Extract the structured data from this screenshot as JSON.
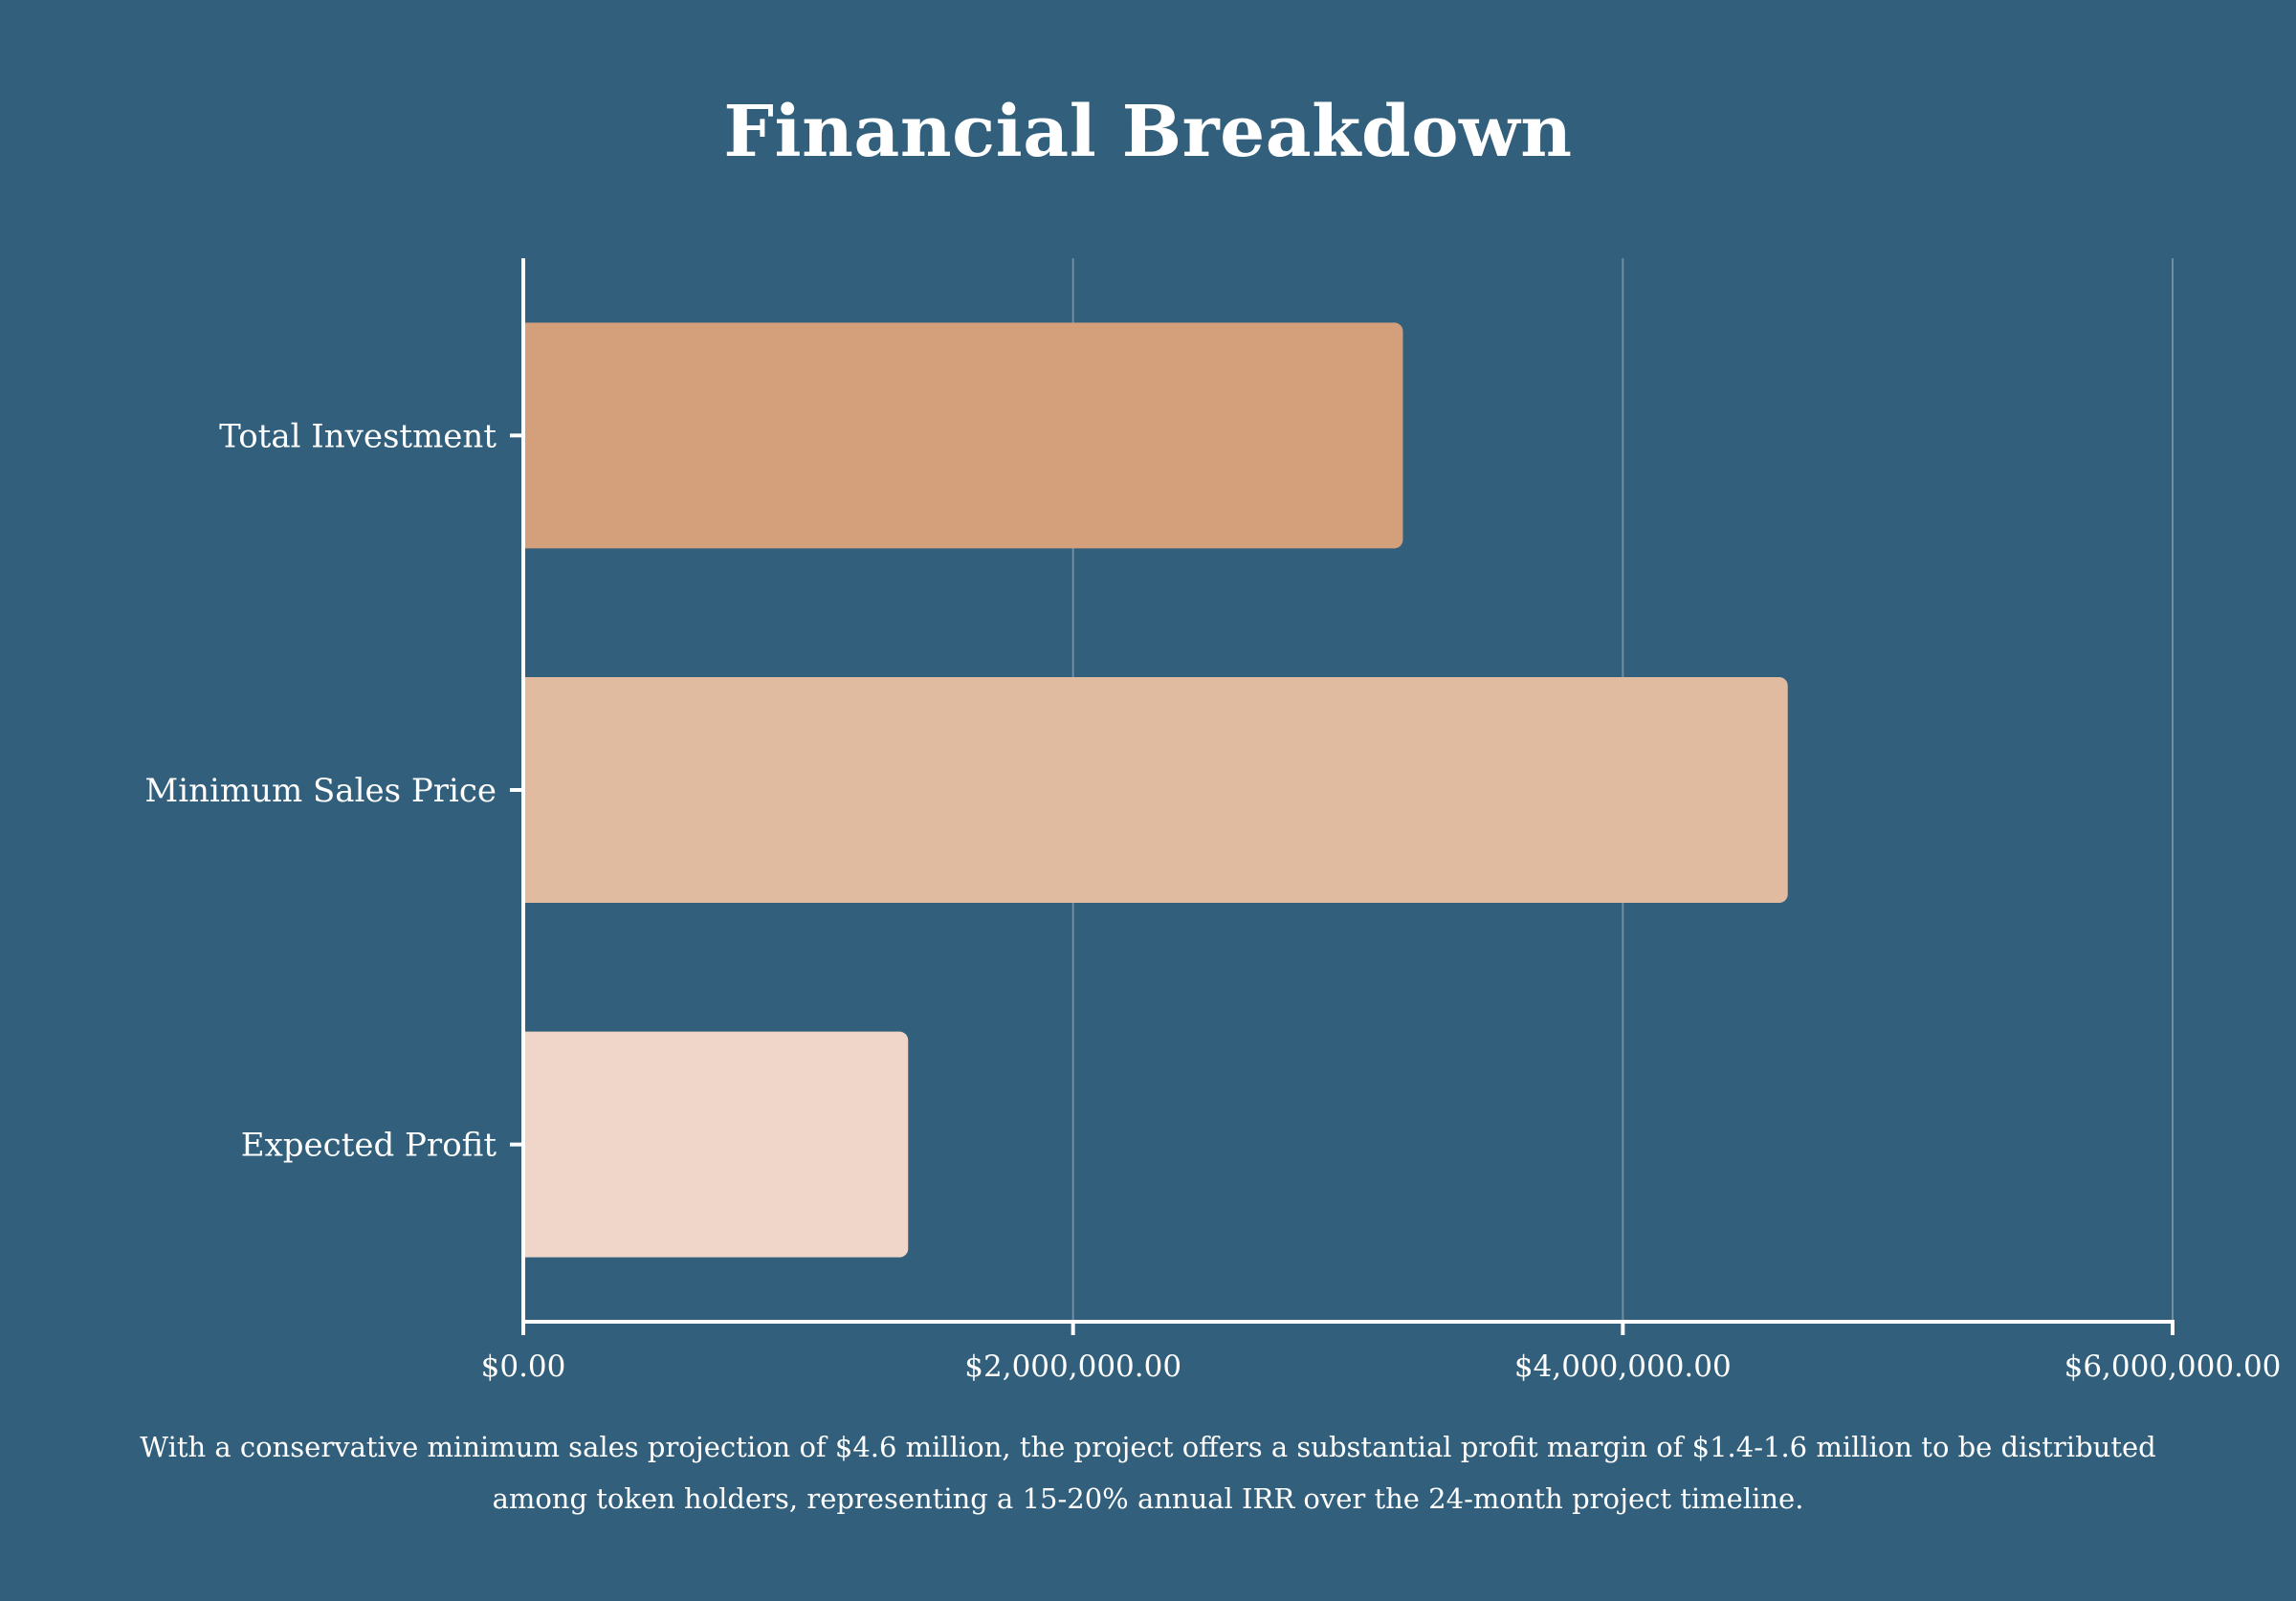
{
  "colors": {
    "background": "#325f7c",
    "axis": "#ffffff",
    "grid": "#6f8e9f",
    "text": "#ffffff"
  },
  "chart_data": {
    "type": "bar",
    "orientation": "horizontal",
    "title": "Financial Breakdown",
    "categories": [
      "Total Investment",
      "Minimum Sales Price",
      "Expected Profit"
    ],
    "values": [
      3200000,
      4600000,
      1400000
    ],
    "bar_colors": [
      "#d4a07c",
      "#e0bba0",
      "#efd6c8"
    ],
    "xlim": [
      0,
      6000000
    ],
    "xticks": [
      0,
      2000000,
      4000000,
      6000000
    ],
    "xtick_labels": [
      "$0.00",
      "$2,000,000.00",
      "$4,000,000.00",
      "$6,000,000.00"
    ],
    "xlabel": "",
    "ylabel": "",
    "grid": "vertical"
  },
  "caption": {
    "line1": "With a conservative minimum sales projection of $4.6 million, the project offers a substantial profit margin of $1.4-1.6 million to be distributed",
    "line2": "among token holders, representing a 15-20% annual IRR over the 24-month project timeline."
  }
}
